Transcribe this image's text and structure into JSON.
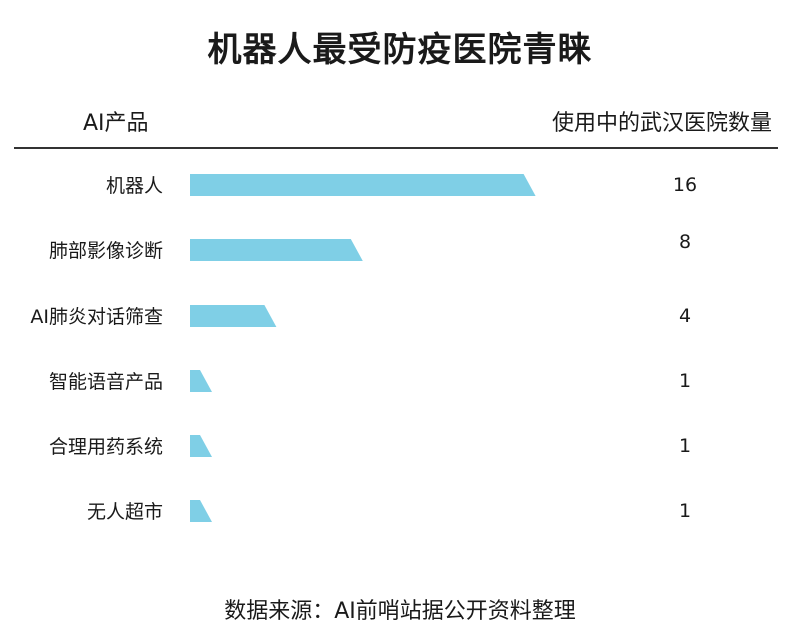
{
  "title": "机器人最受防疫医院青睐",
  "header": {
    "left": "AI产品",
    "right": "使用中的武汉医院数量"
  },
  "source": "数据来源：AI前哨站据公开资料整理",
  "colors": {
    "bar": "#7FCFE6",
    "text": "#1a1a1a"
  },
  "chart_data": {
    "type": "bar",
    "orientation": "horizontal",
    "categories": [
      "机器人",
      "肺部影像诊断",
      "AI肺炎对话筛查",
      "智能语音产品",
      "合理用药系统",
      "无人超市"
    ],
    "values": [
      16,
      8,
      4,
      1,
      1,
      1
    ],
    "value_labels": [
      "16",
      "8",
      "4",
      "1",
      "1",
      "1"
    ],
    "xlabel": "使用中的武汉医院数量",
    "ylabel": "AI产品",
    "grid": false,
    "legend": "none"
  }
}
